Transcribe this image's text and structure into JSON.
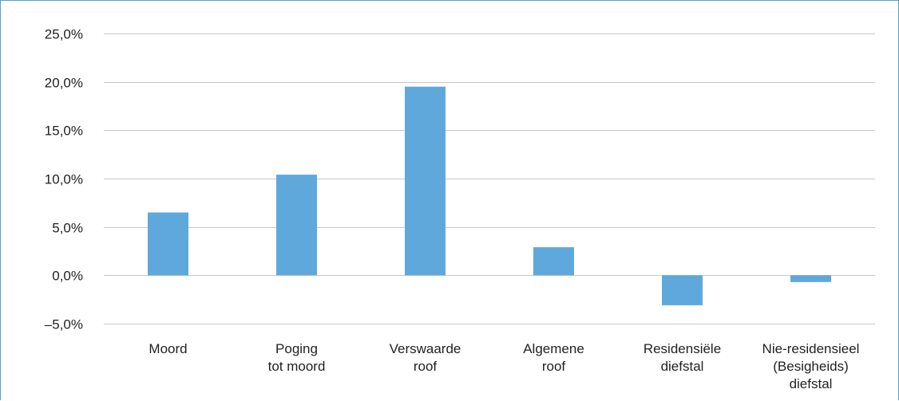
{
  "chart_data": {
    "type": "bar",
    "title": "",
    "xlabel": "",
    "ylabel": "",
    "categories": [
      [
        "Moord"
      ],
      [
        "Poging",
        "tot moord"
      ],
      [
        "Verswaarde",
        "roof"
      ],
      [
        "Algemene",
        "roof"
      ],
      [
        "Residensiële",
        "diefstal"
      ],
      [
        "Nie-residensieel",
        "(Besigheids)",
        "diefstal"
      ]
    ],
    "values": [
      6.5,
      10.4,
      19.5,
      2.9,
      -3.1,
      -0.7
    ],
    "ylim": [
      -5,
      25
    ],
    "yticks": [
      25,
      20,
      15,
      10,
      5,
      0,
      -5
    ],
    "ytick_labels": [
      "25,0%",
      "20,0%",
      "15,0%",
      "10,0%",
      "5,0%",
      "0,0%",
      "–5,0%"
    ],
    "grid": true,
    "legend": "none",
    "colors": {
      "bar": "#5fa8dc",
      "grid": "#c8c8c8",
      "axis_text": "#231f20",
      "frame": "#4aa3d8"
    }
  }
}
